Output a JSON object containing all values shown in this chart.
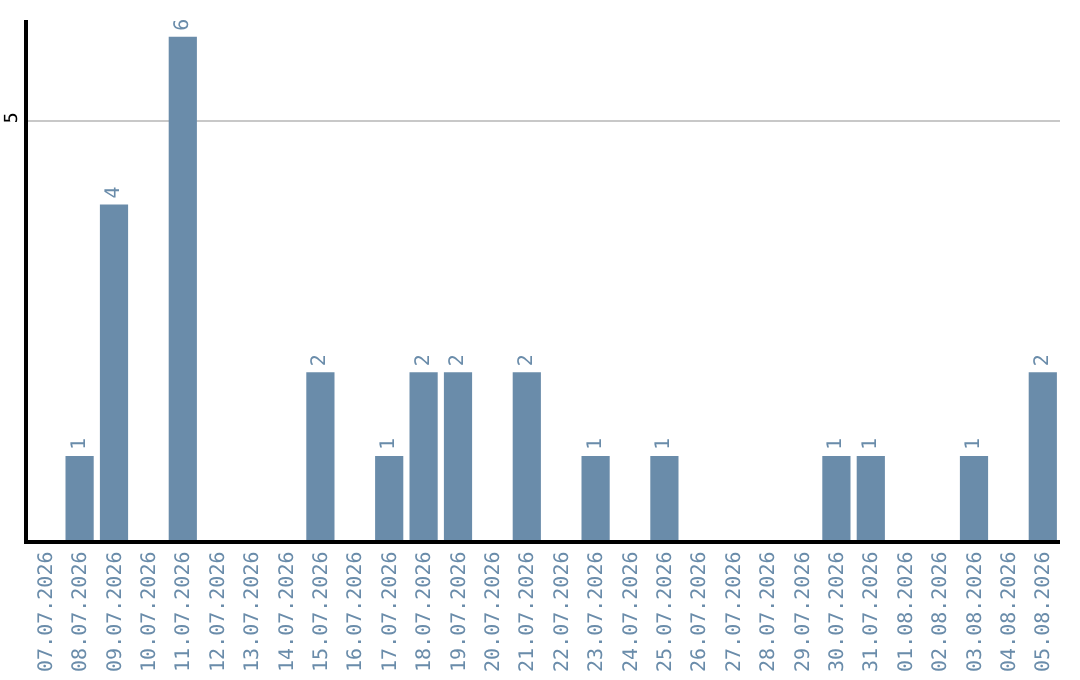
{
  "chart_data": {
    "type": "bar",
    "categories": [
      "07.07.2026",
      "08.07.2026",
      "09.07.2026",
      "10.07.2026",
      "11.07.2026",
      "12.07.2026",
      "13.07.2026",
      "14.07.2026",
      "15.07.2026",
      "16.07.2026",
      "17.07.2026",
      "18.07.2026",
      "19.07.2026",
      "20.07.2026",
      "21.07.2026",
      "22.07.2026",
      "23.07.2026",
      "24.07.2026",
      "25.07.2026",
      "26.07.2026",
      "27.07.2026",
      "28.07.2026",
      "29.07.2026",
      "30.07.2026",
      "31.07.2026",
      "01.08.2026",
      "02.08.2026",
      "03.08.2026",
      "04.08.2026",
      "05.08.2026"
    ],
    "values": [
      0,
      1,
      4,
      0,
      6,
      0,
      0,
      0,
      2,
      0,
      1,
      2,
      2,
      0,
      2,
      0,
      1,
      0,
      1,
      0,
      0,
      0,
      0,
      1,
      1,
      0,
      0,
      1,
      0,
      2
    ],
    "value_labels": [
      null,
      "1",
      "4",
      null,
      "6",
      null,
      null,
      null,
      "2",
      null,
      "1",
      "2",
      "2",
      null,
      "2",
      null,
      "1",
      null,
      "1",
      null,
      null,
      null,
      null,
      "1",
      "1",
      null,
      null,
      "1",
      null,
      "2"
    ],
    "color": "#6a8caa",
    "ylim": [
      0,
      6.2
    ],
    "yticks": [
      5
    ],
    "grid": "y",
    "legend": false
  }
}
